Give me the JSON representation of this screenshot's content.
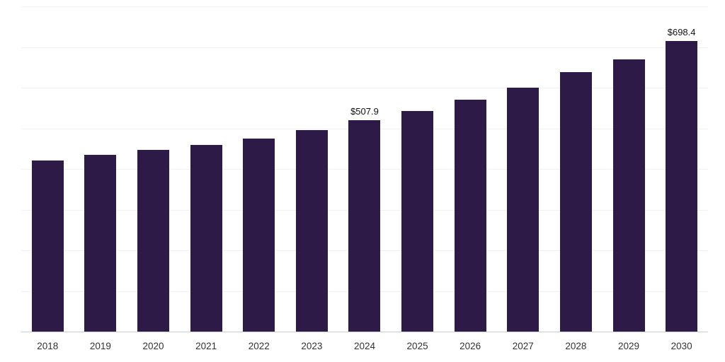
{
  "chart_data": {
    "type": "bar",
    "title": "",
    "xlabel": "",
    "ylabel": "",
    "categories": [
      "2018",
      "2019",
      "2020",
      "2021",
      "2022",
      "2023",
      "2024",
      "2025",
      "2026",
      "2027",
      "2028",
      "2029",
      "2030"
    ],
    "values": [
      411,
      425,
      437,
      449,
      464,
      484,
      507.9,
      530,
      557,
      587,
      623,
      655,
      698.4
    ],
    "data_labels": [
      "",
      "",
      "",
      "",
      "",
      "",
      "$507.9",
      "",
      "",
      "",
      "",
      "",
      "$698.4"
    ],
    "ylim": [
      0,
      780
    ],
    "gridline_divisions": 8,
    "grid": "horizontal",
    "legend_position": "none",
    "bar_color": "#2e1a47",
    "gridline_color": "#f1f1f1",
    "axis_line_color": "#cfcfcf",
    "label_color": "#111111",
    "tick_color": "#333333"
  }
}
